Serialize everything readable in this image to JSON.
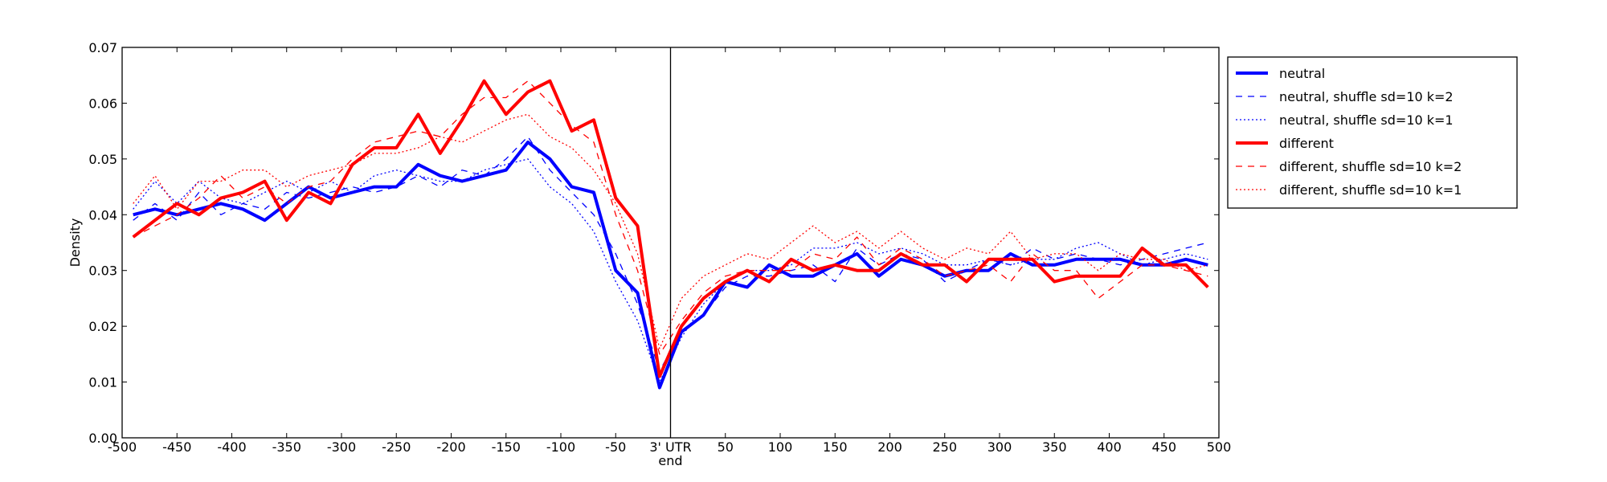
{
  "chart_data": {
    "type": "line",
    "x": [
      -490,
      -470,
      -450,
      -430,
      -410,
      -390,
      -370,
      -350,
      -330,
      -310,
      -290,
      -270,
      -250,
      -230,
      -210,
      -190,
      -170,
      -150,
      -130,
      -110,
      -90,
      -70,
      -50,
      -30,
      -10,
      10,
      30,
      50,
      70,
      90,
      110,
      130,
      150,
      170,
      190,
      210,
      230,
      250,
      270,
      290,
      310,
      330,
      350,
      370,
      390,
      410,
      430,
      450,
      470,
      490
    ],
    "series": [
      {
        "name": "neutral",
        "color": "#0000ff",
        "linestyle": "solid",
        "linewidth": 4,
        "values": [
          0.04,
          0.041,
          0.04,
          0.041,
          0.042,
          0.041,
          0.039,
          0.042,
          0.045,
          0.043,
          0.044,
          0.045,
          0.045,
          0.049,
          0.047,
          0.046,
          0.047,
          0.048,
          0.053,
          0.05,
          0.045,
          0.044,
          0.03,
          0.026,
          0.009,
          0.019,
          0.022,
          0.028,
          0.027,
          0.031,
          0.029,
          0.029,
          0.031,
          0.033,
          0.029,
          0.032,
          0.031,
          0.029,
          0.03,
          0.03,
          0.033,
          0.031,
          0.031,
          0.032,
          0.032,
          0.032,
          0.031,
          0.031,
          0.032,
          0.031
        ]
      },
      {
        "name": "neutral, shuffle sd=10 k=2",
        "color": "#0000ff",
        "linestyle": "dashed",
        "linewidth": 1.3,
        "values": [
          0.039,
          0.042,
          0.039,
          0.044,
          0.04,
          0.042,
          0.041,
          0.044,
          0.043,
          0.044,
          0.045,
          0.044,
          0.045,
          0.047,
          0.045,
          0.048,
          0.047,
          0.05,
          0.054,
          0.048,
          0.044,
          0.04,
          0.033,
          0.024,
          0.012,
          0.019,
          0.022,
          0.027,
          0.029,
          0.029,
          0.03,
          0.031,
          0.028,
          0.034,
          0.031,
          0.033,
          0.032,
          0.028,
          0.03,
          0.032,
          0.031,
          0.034,
          0.032,
          0.033,
          0.032,
          0.031,
          0.032,
          0.033,
          0.034,
          0.035
        ]
      },
      {
        "name": "neutral, shuffle sd=10 k=1",
        "color": "#0000ff",
        "linestyle": "dotted",
        "linewidth": 1.3,
        "values": [
          0.041,
          0.046,
          0.042,
          0.046,
          0.043,
          0.042,
          0.044,
          0.046,
          0.044,
          0.046,
          0.044,
          0.047,
          0.048,
          0.047,
          0.046,
          0.046,
          0.048,
          0.049,
          0.05,
          0.045,
          0.042,
          0.037,
          0.028,
          0.021,
          0.01,
          0.018,
          0.024,
          0.028,
          0.03,
          0.03,
          0.031,
          0.034,
          0.034,
          0.035,
          0.033,
          0.034,
          0.033,
          0.031,
          0.031,
          0.032,
          0.031,
          0.032,
          0.032,
          0.034,
          0.035,
          0.033,
          0.031,
          0.032,
          0.033,
          0.032
        ]
      },
      {
        "name": "different",
        "color": "#ff0000",
        "linestyle": "solid",
        "linewidth": 4,
        "values": [
          0.036,
          0.039,
          0.042,
          0.04,
          0.043,
          0.044,
          0.046,
          0.039,
          0.044,
          0.042,
          0.049,
          0.052,
          0.052,
          0.058,
          0.051,
          0.057,
          0.064,
          0.058,
          0.062,
          0.064,
          0.055,
          0.057,
          0.043,
          0.038,
          0.011,
          0.02,
          0.025,
          0.028,
          0.03,
          0.028,
          0.032,
          0.03,
          0.031,
          0.03,
          0.03,
          0.033,
          0.031,
          0.031,
          0.028,
          0.032,
          0.032,
          0.032,
          0.028,
          0.029,
          0.029,
          0.029,
          0.034,
          0.031,
          0.031,
          0.027
        ]
      },
      {
        "name": "different, shuffle sd=10 k=2",
        "color": "#ff0000",
        "linestyle": "dashed",
        "linewidth": 1.3,
        "values": [
          0.036,
          0.038,
          0.04,
          0.043,
          0.047,
          0.043,
          0.045,
          0.042,
          0.045,
          0.046,
          0.05,
          0.053,
          0.054,
          0.055,
          0.054,
          0.058,
          0.061,
          0.061,
          0.064,
          0.06,
          0.056,
          0.053,
          0.04,
          0.03,
          0.015,
          0.021,
          0.026,
          0.029,
          0.03,
          0.03,
          0.03,
          0.033,
          0.032,
          0.036,
          0.031,
          0.034,
          0.032,
          0.029,
          0.03,
          0.031,
          0.028,
          0.033,
          0.03,
          0.03,
          0.025,
          0.028,
          0.031,
          0.031,
          0.03,
          0.029
        ]
      },
      {
        "name": "different, shuffle sd=10 k=1",
        "color": "#ff0000",
        "linestyle": "dotted",
        "linewidth": 1.3,
        "values": [
          0.042,
          0.047,
          0.041,
          0.046,
          0.046,
          0.048,
          0.048,
          0.045,
          0.047,
          0.048,
          0.049,
          0.051,
          0.051,
          0.052,
          0.054,
          0.053,
          0.055,
          0.057,
          0.058,
          0.054,
          0.052,
          0.048,
          0.042,
          0.033,
          0.016,
          0.025,
          0.029,
          0.031,
          0.033,
          0.032,
          0.035,
          0.038,
          0.035,
          0.037,
          0.034,
          0.037,
          0.034,
          0.032,
          0.034,
          0.033,
          0.037,
          0.032,
          0.033,
          0.033,
          0.03,
          0.033,
          0.032,
          0.032,
          0.03,
          0.031
        ]
      }
    ],
    "y_label": "Density",
    "xlim": [
      -500,
      500
    ],
    "ylim": [
      0,
      0.07
    ],
    "xticks": [
      -500,
      -450,
      -400,
      -350,
      -300,
      -250,
      -200,
      -150,
      -100,
      -50,
      {
        "value": 0,
        "label": "3' UTR\nend"
      },
      50,
      100,
      150,
      200,
      250,
      300,
      350,
      400,
      450,
      500
    ],
    "yticks": [
      {
        "value": 0,
        "label": "0.00"
      },
      {
        "value": 0.01,
        "label": "0.01"
      },
      {
        "value": 0.02,
        "label": "0.02"
      },
      {
        "value": 0.03,
        "label": "0.03"
      },
      {
        "value": 0.04,
        "label": "0.04"
      },
      {
        "value": 0.05,
        "label": "0.05"
      },
      {
        "value": 0.06,
        "label": "0.06"
      },
      {
        "value": 0.07,
        "label": "0.07"
      }
    ],
    "vline": 0,
    "legend": "outside-right"
  }
}
